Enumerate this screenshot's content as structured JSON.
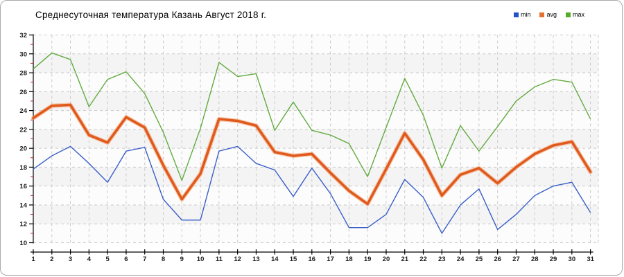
{
  "title": "Среднесуточная температура Казань  Август 2018 г.",
  "legend": [
    {
      "label": "min",
      "color": "#2353c6"
    },
    {
      "label": "avg",
      "color": "#e8702e"
    },
    {
      "label": "max",
      "color": "#53ad27"
    }
  ],
  "chart_data": {
    "type": "line",
    "title": "Среднесуточная температура Казань  Август 2018 г.",
    "xlabel": "",
    "ylabel": "",
    "x": [
      1,
      2,
      3,
      4,
      5,
      6,
      7,
      8,
      9,
      10,
      11,
      12,
      13,
      14,
      15,
      16,
      17,
      18,
      19,
      20,
      21,
      22,
      23,
      24,
      25,
      26,
      27,
      28,
      29,
      30,
      31
    ],
    "series": [
      {
        "name": "min",
        "color": "#3a5fc8",
        "width": 1.4,
        "values": [
          17.8,
          19.2,
          20.2,
          18.4,
          16.4,
          19.7,
          20.1,
          14.6,
          12.4,
          12.4,
          19.7,
          20.2,
          18.4,
          17.7,
          14.9,
          17.9,
          15.2,
          11.6,
          11.6,
          13.0,
          16.7,
          14.8,
          11.0,
          14.0,
          15.7,
          11.4,
          13.0,
          15.0,
          16.0,
          16.4,
          13.2
        ]
      },
      {
        "name": "avg",
        "color": "#e05a1e",
        "halo": "#f3a878",
        "width": 3.6,
        "values": [
          23.2,
          24.5,
          24.6,
          21.4,
          20.6,
          23.3,
          22.2,
          18.2,
          14.6,
          17.3,
          23.1,
          22.9,
          22.4,
          19.6,
          19.2,
          19.4,
          17.4,
          15.5,
          14.1,
          17.8,
          21.6,
          18.8,
          15.0,
          17.2,
          17.9,
          16.3,
          18.0,
          19.4,
          20.3,
          20.7,
          17.5
        ]
      },
      {
        "name": "max",
        "color": "#63ab3f",
        "width": 1.4,
        "values": [
          28.4,
          30.1,
          29.4,
          24.4,
          27.3,
          28.1,
          25.8,
          21.7,
          16.6,
          22.1,
          29.1,
          27.6,
          27.9,
          21.9,
          24.9,
          21.9,
          21.4,
          20.5,
          17.0,
          22.2,
          27.4,
          23.5,
          17.9,
          22.4,
          19.7,
          22.3,
          25.0,
          26.5,
          27.3,
          27.0,
          23.1
        ]
      }
    ],
    "ylim": [
      10,
      32
    ],
    "y_ticks_major": [
      32,
      30,
      28,
      26,
      24,
      22,
      20,
      18,
      16,
      14,
      12,
      10
    ],
    "y_ticks_minor": [
      31,
      29,
      27,
      25,
      23,
      21,
      19,
      17,
      15,
      13,
      11
    ],
    "grid": true,
    "legend_position": "top-right",
    "colors": {
      "plot_band_light": "#fcfcfc",
      "plot_band_dark": "#f4f4f5",
      "grid": "#c9c9c9",
      "axis": "#000000",
      "minor_tick": "#cc2222",
      "tick_label": "#1a1a1a"
    }
  }
}
